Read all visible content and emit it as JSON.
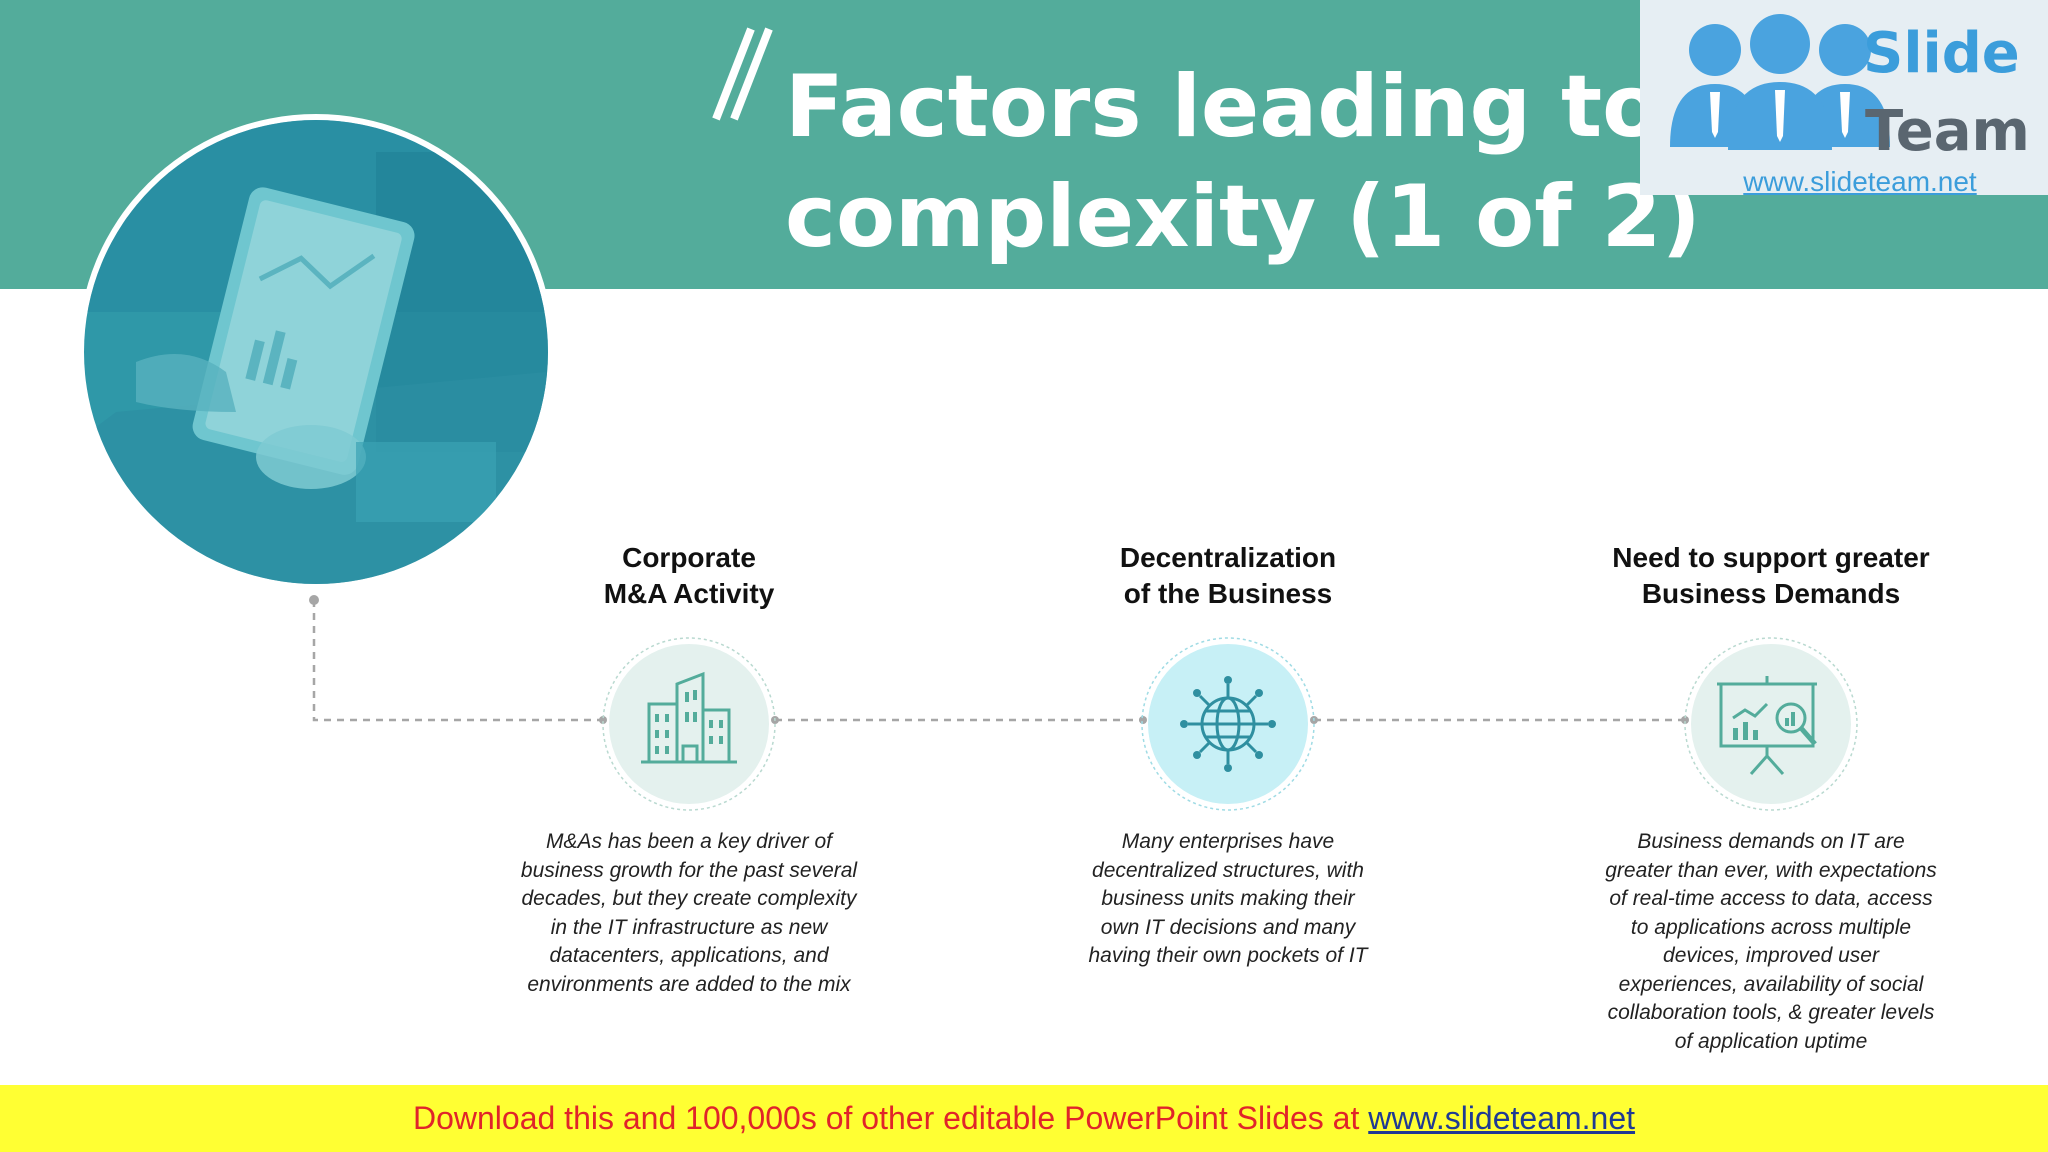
{
  "slide": {
    "title": "Factors leading to IT\ncomplexity (1 of 2)"
  },
  "logo": {
    "word1": "Slide",
    "word2": "Team",
    "url": "www.slideteam.net"
  },
  "factors": [
    {
      "heading": "Corporate\nM&A Activity",
      "icon": "buildings-icon",
      "description": "M&As has been a key driver of\nbusiness growth for the past several\ndecades, but they create complexity\nin the IT infrastructure as new\ndatacenters, applications, and\nenvironments are added to the mix"
    },
    {
      "heading": "Decentralization\nof the Business",
      "icon": "globe-network-icon",
      "description": "Many enterprises have\ndecentralized structures, with\nbusiness units making their\nown IT decisions and many\nhaving their own pockets of IT"
    },
    {
      "heading": "Need to support greater\nBusiness Demands",
      "icon": "presentation-analytics-icon",
      "description": "Business demands on IT are\ngreater than ever, with expectations\nof real-time access to data, access\nto applications across multiple\ndevices, improved user\nexperiences, availability of social\ncollaboration tools, & greater levels\nof application uptime"
    }
  ],
  "footer": {
    "text": "Download this and 100,000s of other editable PowerPoint Slides at ",
    "link": "www.slideteam.net"
  },
  "colors": {
    "header": "#53ac9b",
    "photo_tint": "#2a9bad",
    "footer_bg": "#ffff33",
    "footer_text": "#e0242a",
    "logo_blue": "#3b9ddb"
  }
}
